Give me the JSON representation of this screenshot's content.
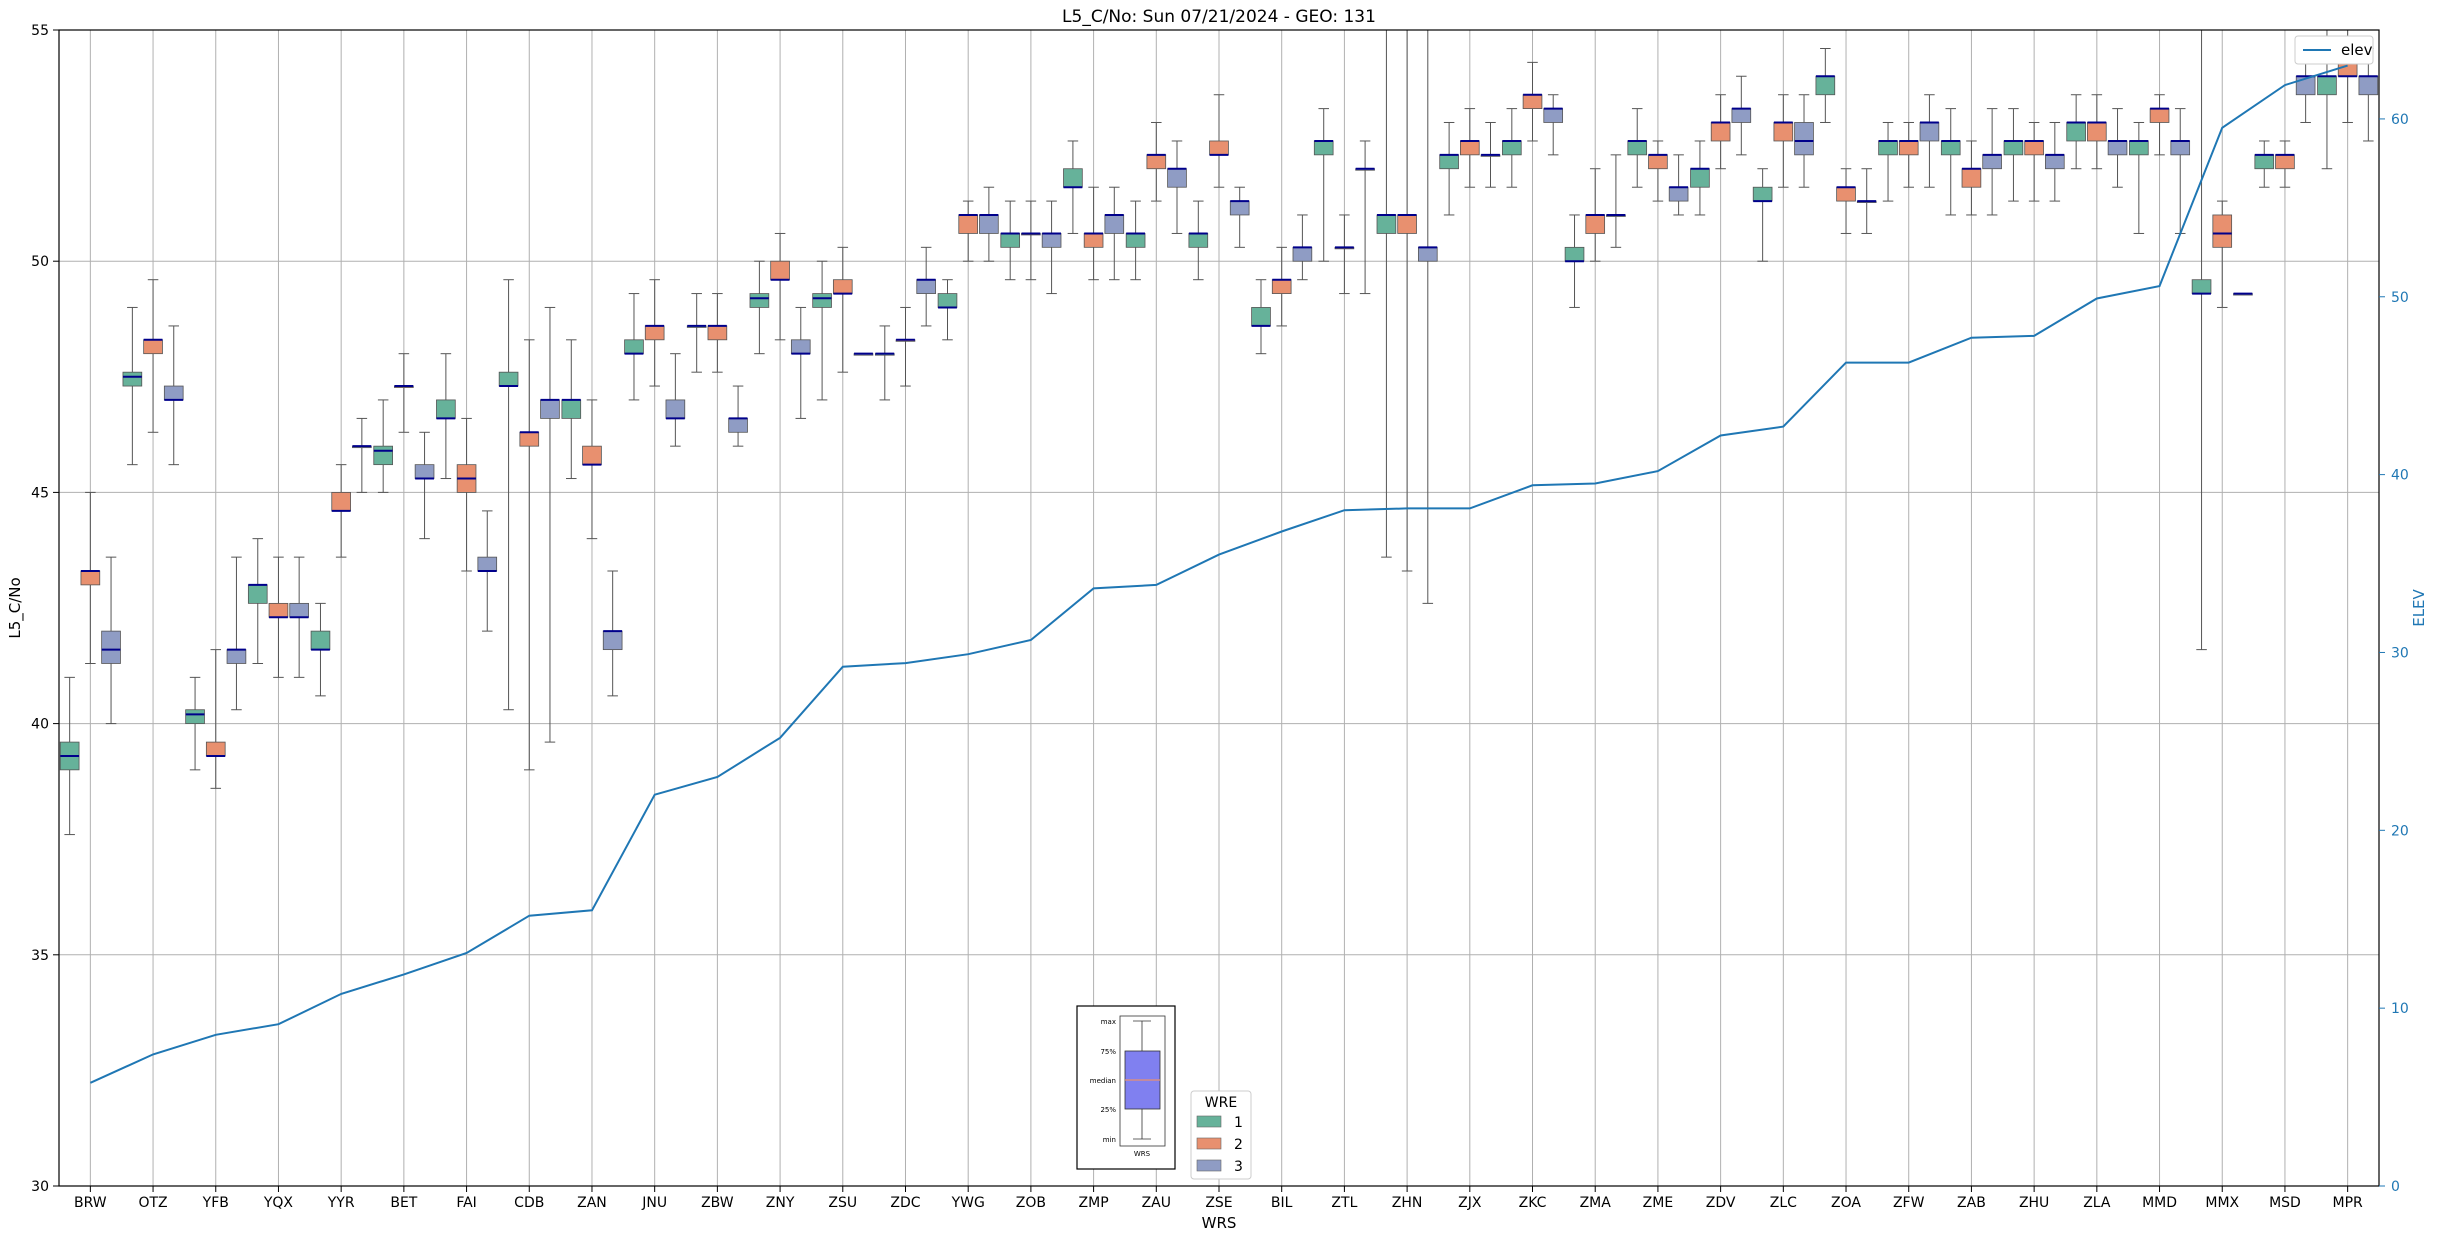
{
  "chart_data": {
    "type": "box",
    "title": "L5_C/No: Sun 07/21/2024 - GEO: 131",
    "xlabel": "WRS",
    "ylabel": "L5_C/No",
    "y2label": "ELEV",
    "ylim": [
      30,
      55
    ],
    "y2lim": [
      0,
      65
    ],
    "yticks": [
      30,
      35,
      40,
      45,
      50,
      55
    ],
    "y2ticks": [
      0,
      10,
      20,
      30,
      40,
      50,
      60
    ],
    "grid": true,
    "legend_title": "WRE",
    "legend_placement": "bottom-center",
    "line_legend_placement": "top-right",
    "colors": {
      "1": "#66b29a",
      "2": "#e8906f",
      "3": "#8f9cc4",
      "elev": "#1f77b4",
      "median": "#00008b"
    },
    "categories": [
      "BRW",
      "OTZ",
      "YFB",
      "YQX",
      "YYR",
      "BET",
      "FAI",
      "CDB",
      "ZAN",
      "JNU",
      "ZBW",
      "ZNY",
      "ZSU",
      "ZDC",
      "YWG",
      "ZOB",
      "ZMP",
      "ZAU",
      "ZSE",
      "BIL",
      "ZTL",
      "ZHN",
      "ZJX",
      "ZKC",
      "ZMA",
      "ZME",
      "ZDV",
      "ZLC",
      "ZOA",
      "ZFW",
      "ZAB",
      "ZHU",
      "ZLA",
      "MMD",
      "MMX",
      "MSD",
      "MPR"
    ],
    "series": [
      {
        "name": "1",
        "boxes": [
          [
            37.6,
            39.0,
            39.3,
            39.6,
            41.0
          ],
          [
            45.6,
            47.3,
            47.5,
            47.6,
            49.0
          ],
          [
            39.0,
            40.0,
            40.2,
            40.3,
            41.0
          ],
          [
            41.3,
            42.6,
            43.0,
            43.0,
            44.0
          ],
          [
            40.6,
            41.6,
            41.6,
            42.0,
            42.6
          ],
          [
            45.0,
            45.6,
            45.9,
            46.0,
            47.0
          ],
          [
            45.3,
            46.6,
            46.6,
            47.0,
            48.0
          ],
          [
            40.3,
            47.3,
            47.3,
            47.6,
            49.6
          ],
          [
            45.3,
            46.6,
            47.0,
            47.0,
            48.3
          ],
          [
            47.0,
            48.0,
            48.0,
            48.3,
            49.3
          ],
          [
            47.6,
            48.6,
            48.6,
            48.6,
            49.3
          ],
          [
            48.0,
            49.0,
            49.2,
            49.3,
            50.0
          ],
          [
            47.0,
            49.0,
            49.2,
            49.3,
            50.0
          ],
          [
            47.0,
            48.0,
            48.0,
            48.0,
            48.6
          ],
          [
            48.3,
            49.0,
            49.0,
            49.3,
            49.6
          ],
          [
            49.6,
            50.3,
            50.6,
            50.6,
            51.3
          ],
          [
            50.6,
            51.6,
            51.6,
            52.0,
            52.6
          ],
          [
            49.6,
            50.3,
            50.6,
            50.6,
            51.3
          ],
          [
            49.6,
            50.3,
            50.6,
            50.6,
            51.3
          ],
          [
            48.0,
            48.6,
            48.6,
            49.0,
            49.6
          ],
          [
            50.0,
            52.3,
            52.6,
            52.6,
            53.3
          ],
          [
            43.6,
            50.6,
            51.0,
            51.0,
            55.0
          ],
          [
            51.0,
            52.0,
            52.3,
            52.3,
            53.0
          ],
          [
            51.6,
            52.3,
            52.6,
            52.6,
            53.3
          ],
          [
            49.0,
            50.0,
            50.0,
            50.3,
            51.0
          ],
          [
            51.6,
            52.3,
            52.6,
            52.6,
            53.3
          ],
          [
            51.0,
            51.6,
            52.0,
            52.0,
            52.6
          ],
          [
            50.0,
            51.3,
            51.3,
            51.6,
            52.0
          ],
          [
            53.0,
            53.6,
            54.0,
            54.0,
            54.6
          ],
          [
            51.3,
            52.3,
            52.6,
            52.6,
            53.0
          ],
          [
            51.0,
            52.3,
            52.6,
            52.6,
            53.3
          ],
          [
            51.3,
            52.3,
            52.6,
            52.6,
            53.3
          ],
          [
            52.0,
            52.6,
            53.0,
            53.0,
            53.6
          ],
          [
            50.6,
            52.3,
            52.6,
            52.6,
            53.0
          ],
          [
            41.6,
            49.3,
            49.3,
            49.6,
            55.0
          ],
          [
            51.6,
            52.0,
            52.3,
            52.3,
            52.6
          ],
          [
            52.0,
            53.6,
            54.0,
            54.0,
            55.0
          ]
        ]
      },
      {
        "name": "2",
        "boxes": [
          [
            41.3,
            43.0,
            43.3,
            43.3,
            45.0
          ],
          [
            46.3,
            48.0,
            48.3,
            48.3,
            49.6
          ],
          [
            38.6,
            39.3,
            39.3,
            39.6,
            41.6
          ],
          [
            41.0,
            42.3,
            42.3,
            42.6,
            43.6
          ],
          [
            43.6,
            44.6,
            44.6,
            45.0,
            45.6
          ],
          [
            46.3,
            47.3,
            47.3,
            47.3,
            48.0
          ],
          [
            43.3,
            45.0,
            45.3,
            45.6,
            46.6
          ],
          [
            39.0,
            46.0,
            46.3,
            46.3,
            48.3
          ],
          [
            44.0,
            45.6,
            45.6,
            46.0,
            47.0
          ],
          [
            47.3,
            48.3,
            48.6,
            48.6,
            49.6
          ],
          [
            47.6,
            48.3,
            48.6,
            48.6,
            49.3
          ],
          [
            48.3,
            49.6,
            49.6,
            50.0,
            50.6
          ],
          [
            47.6,
            49.3,
            49.3,
            49.6,
            50.3
          ],
          [
            47.3,
            48.3,
            48.3,
            48.3,
            49.0
          ],
          [
            50.0,
            50.6,
            51.0,
            51.0,
            51.3
          ],
          [
            49.6,
            50.6,
            50.6,
            50.6,
            51.3
          ],
          [
            49.6,
            50.3,
            50.6,
            50.6,
            51.6
          ],
          [
            51.3,
            52.0,
            52.3,
            52.3,
            53.0
          ],
          [
            51.6,
            52.3,
            52.3,
            52.6,
            53.6
          ],
          [
            48.6,
            49.3,
            49.6,
            49.6,
            50.3
          ],
          [
            49.3,
            50.3,
            50.3,
            50.3,
            51.0
          ],
          [
            43.3,
            50.6,
            51.0,
            51.0,
            55.0
          ],
          [
            51.6,
            52.3,
            52.6,
            52.6,
            53.3
          ],
          [
            52.6,
            53.3,
            53.6,
            53.6,
            54.3
          ],
          [
            50.0,
            50.6,
            51.0,
            51.0,
            52.0
          ],
          [
            51.3,
            52.0,
            52.3,
            52.3,
            52.6
          ],
          [
            52.0,
            52.6,
            53.0,
            53.0,
            53.6
          ],
          [
            51.6,
            52.6,
            53.0,
            53.0,
            53.6
          ],
          [
            50.6,
            51.3,
            51.6,
            51.6,
            52.0
          ],
          [
            51.6,
            52.3,
            52.6,
            52.6,
            53.0
          ],
          [
            51.0,
            51.6,
            52.0,
            52.0,
            52.6
          ],
          [
            51.3,
            52.3,
            52.6,
            52.6,
            53.0
          ],
          [
            52.0,
            52.6,
            53.0,
            53.0,
            53.6
          ],
          [
            52.3,
            53.0,
            53.3,
            53.3,
            53.6
          ],
          [
            49.0,
            50.3,
            50.6,
            51.0,
            51.3
          ],
          [
            51.6,
            52.0,
            52.3,
            52.3,
            52.6
          ],
          [
            53.0,
            54.0,
            54.0,
            54.3,
            55.0
          ]
        ]
      },
      {
        "name": "3",
        "boxes": [
          [
            40.0,
            41.3,
            41.6,
            42.0,
            43.6
          ],
          [
            45.6,
            47.0,
            47.0,
            47.3,
            48.6
          ],
          [
            40.3,
            41.3,
            41.6,
            41.6,
            43.6
          ],
          [
            41.0,
            42.3,
            42.3,
            42.6,
            43.6
          ],
          [
            45.0,
            46.0,
            46.0,
            46.0,
            46.6
          ],
          [
            44.0,
            45.3,
            45.3,
            45.6,
            46.3
          ],
          [
            42.0,
            43.3,
            43.3,
            43.6,
            44.6
          ],
          [
            39.6,
            46.6,
            47.0,
            47.0,
            49.0
          ],
          [
            40.6,
            41.6,
            42.0,
            42.0,
            43.3
          ],
          [
            46.0,
            46.6,
            46.6,
            47.0,
            48.0
          ],
          [
            46.0,
            46.3,
            46.6,
            46.6,
            47.3
          ],
          [
            46.6,
            48.0,
            48.0,
            48.3,
            49.0
          ],
          [
            48.0,
            48.0,
            48.0,
            48.0,
            48.0
          ],
          [
            48.6,
            49.3,
            49.6,
            49.6,
            50.3
          ],
          [
            50.0,
            50.6,
            51.0,
            51.0,
            51.6
          ],
          [
            49.3,
            50.3,
            50.6,
            50.6,
            51.3
          ],
          [
            49.6,
            50.6,
            51.0,
            51.0,
            51.6
          ],
          [
            50.6,
            51.6,
            52.0,
            52.0,
            52.6
          ],
          [
            50.3,
            51.0,
            51.3,
            51.3,
            51.6
          ],
          [
            49.6,
            50.0,
            50.3,
            50.3,
            51.0
          ],
          [
            49.3,
            52.0,
            52.0,
            52.0,
            52.6
          ],
          [
            42.6,
            50.0,
            50.3,
            50.3,
            55.0
          ],
          [
            51.6,
            52.3,
            52.3,
            52.3,
            53.0
          ],
          [
            52.3,
            53.0,
            53.3,
            53.3,
            53.6
          ],
          [
            50.3,
            51.0,
            51.0,
            51.0,
            52.3
          ],
          [
            51.0,
            51.3,
            51.6,
            51.6,
            52.3
          ],
          [
            52.3,
            53.0,
            53.3,
            53.3,
            54.0
          ],
          [
            51.6,
            52.3,
            52.6,
            53.0,
            53.6
          ],
          [
            50.6,
            51.3,
            51.3,
            51.3,
            52.0
          ],
          [
            51.6,
            52.6,
            53.0,
            53.0,
            53.6
          ],
          [
            51.0,
            52.0,
            52.3,
            52.3,
            53.3
          ],
          [
            51.3,
            52.0,
            52.3,
            52.3,
            53.0
          ],
          [
            51.6,
            52.3,
            52.6,
            52.6,
            53.3
          ],
          [
            50.6,
            52.3,
            52.6,
            52.6,
            53.3
          ],
          [
            49.3,
            49.3,
            49.3,
            49.3,
            49.3
          ],
          [
            53.0,
            53.6,
            54.0,
            54.0,
            54.6
          ],
          [
            52.6,
            53.6,
            54.0,
            54.0,
            54.6
          ]
        ]
      }
    ],
    "elev": [
      5.8,
      7.4,
      8.5,
      9.1,
      10.8,
      11.9,
      13.1,
      15.2,
      15.5,
      22.0,
      23.0,
      25.2,
      29.2,
      29.4,
      29.9,
      30.7,
      33.6,
      33.8,
      35.5,
      36.8,
      38.0,
      38.1,
      38.1,
      39.4,
      39.5,
      40.2,
      42.2,
      42.7,
      46.3,
      46.3,
      47.7,
      47.8,
      49.9,
      50.6,
      59.5,
      61.9,
      63.0
    ],
    "inset": {
      "labels": [
        "max",
        "75%",
        "median",
        "25%",
        "min"
      ],
      "xlabel": "WRS"
    }
  }
}
